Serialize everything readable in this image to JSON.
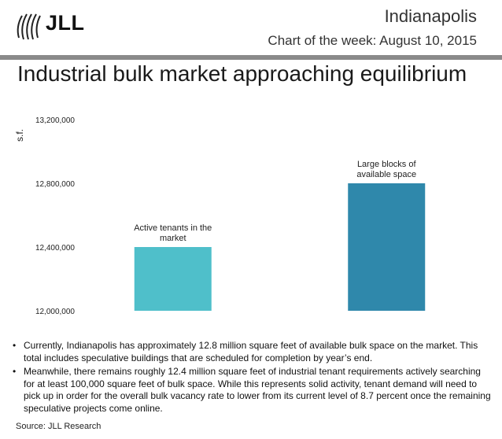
{
  "header": {
    "logo_text": "JLL",
    "city": "Indianapolis",
    "subtitle": "Chart of the week: August 10, 2015",
    "title": "Industrial bulk market approaching equilibrium"
  },
  "colors": {
    "bar1": "#4fbfca",
    "bar2": "#2f88ab",
    "title_bar": "#8a8a8a"
  },
  "chart_data": {
    "type": "bar",
    "ylabel": "s.f.",
    "ylim": [
      12000000,
      13200000
    ],
    "yticks": [
      12000000,
      12400000,
      12800000,
      13200000
    ],
    "ytick_labels": [
      "12,000,000",
      "12,400,000",
      "12,800,000",
      "13,200,000"
    ],
    "grid": false,
    "categories": [
      "Active tenants in the market",
      "Large blocks of available space"
    ],
    "label_lines": [
      [
        "Active tenants in the",
        "market"
      ],
      [
        "Large blocks of",
        "available space"
      ]
    ],
    "values": [
      12400000,
      12800000
    ]
  },
  "bullets": [
    "Currently, Indianapolis has approximately 12.8 million square feet of available bulk space on the market. This total includes speculative buildings that are scheduled for completion by year’s end.",
    "Meanwhile, there remains roughly 12.4 million square feet of industrial tenant requirements actively searching for at least 100,000 square feet of bulk space. While this represents solid activity, tenant demand will need to pick up in order for the overall bulk vacancy rate to lower from its current level of 8.7 percent once the remaining speculative projects come online."
  ],
  "source": "Source: JLL Research"
}
